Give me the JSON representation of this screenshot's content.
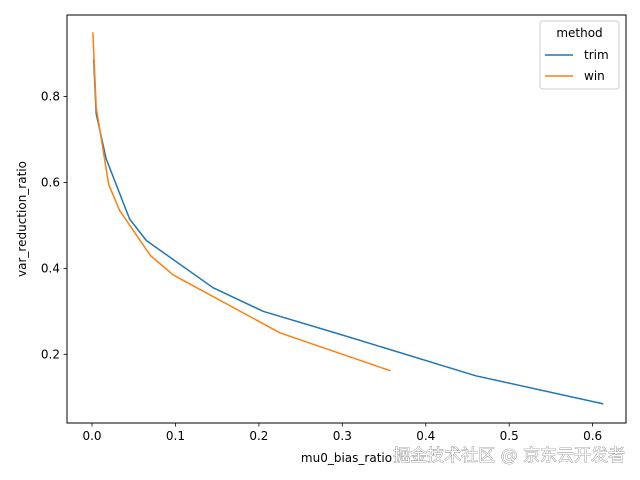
{
  "chart_data": {
    "type": "line",
    "xlabel": "mu0_bias_ratio",
    "ylabel": "var_reduction_ratio",
    "xlim": [
      -0.03,
      0.64
    ],
    "ylim": [
      0.04,
      0.99
    ],
    "xticks": [
      0.0,
      0.1,
      0.2,
      0.3,
      0.4,
      0.5,
      0.6
    ],
    "xtick_labels": [
      "0.0",
      "0.1",
      "0.2",
      "0.3",
      "0.4",
      "0.5",
      "0.6"
    ],
    "yticks": [
      0.2,
      0.4,
      0.6,
      0.8
    ],
    "ytick_labels": [
      "0.2",
      "0.4",
      "0.6",
      "0.8"
    ],
    "grid": false,
    "legend": {
      "title": "method",
      "placement": "top-right"
    },
    "series": [
      {
        "name": "trim",
        "color": "#1f77b4",
        "x": [
          0.002,
          0.005,
          0.017,
          0.045,
          0.065,
          0.145,
          0.205,
          0.3,
          0.46,
          0.612
        ],
        "y": [
          0.885,
          0.76,
          0.655,
          0.515,
          0.465,
          0.355,
          0.3,
          0.245,
          0.15,
          0.085
        ]
      },
      {
        "name": "win",
        "color": "#ff7f0e",
        "x": [
          0.001,
          0.005,
          0.02,
          0.033,
          0.07,
          0.097,
          0.225,
          0.357
        ],
        "y": [
          0.948,
          0.775,
          0.595,
          0.535,
          0.43,
          0.385,
          0.25,
          0.162
        ]
      }
    ]
  },
  "watermark": "掘金技术社区 @ 京东云开发者"
}
